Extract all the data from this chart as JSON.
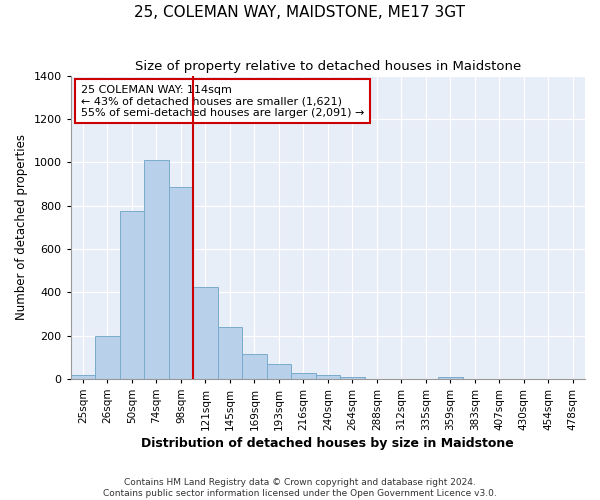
{
  "title": "25, COLEMAN WAY, MAIDSTONE, ME17 3GT",
  "subtitle": "Size of property relative to detached houses in Maidstone",
  "xlabel": "Distribution of detached houses by size in Maidstone",
  "ylabel": "Number of detached properties",
  "categories": [
    "25sqm",
    "26sqm",
    "50sqm",
    "74sqm",
    "98sqm",
    "121sqm",
    "145sqm",
    "169sqm",
    "193sqm",
    "216sqm",
    "240sqm",
    "264sqm",
    "288sqm",
    "312sqm",
    "335sqm",
    "359sqm",
    "383sqm",
    "407sqm",
    "430sqm",
    "454sqm",
    "478sqm"
  ],
  "values": [
    20,
    200,
    775,
    1010,
    885,
    425,
    240,
    115,
    70,
    25,
    20,
    10,
    0,
    0,
    0,
    10,
    0,
    0,
    0,
    0,
    0
  ],
  "bar_color": "#b8d0ea",
  "bar_edge_color": "#7aabcc",
  "vline_color": "#cc0000",
  "annotation_text": "25 COLEMAN WAY: 114sqm\n← 43% of detached houses are smaller (1,621)\n55% of semi-detached houses are larger (2,091) →",
  "annotation_box_color": "#ffffff",
  "annotation_box_edge_color": "#cc0000",
  "ylim": [
    0,
    1400
  ],
  "yticks": [
    0,
    200,
    400,
    600,
    800,
    1000,
    1200,
    1400
  ],
  "bg_color": "#e8eef8",
  "footer": "Contains HM Land Registry data © Crown copyright and database right 2024.\nContains public sector information licensed under the Open Government Licence v3.0.",
  "title_fontsize": 11,
  "subtitle_fontsize": 9.5,
  "xlabel_fontsize": 9,
  "ylabel_fontsize": 8.5,
  "footer_fontsize": 6.5,
  "tick_fontsize": 7.5,
  "vline_x_idx": 5
}
